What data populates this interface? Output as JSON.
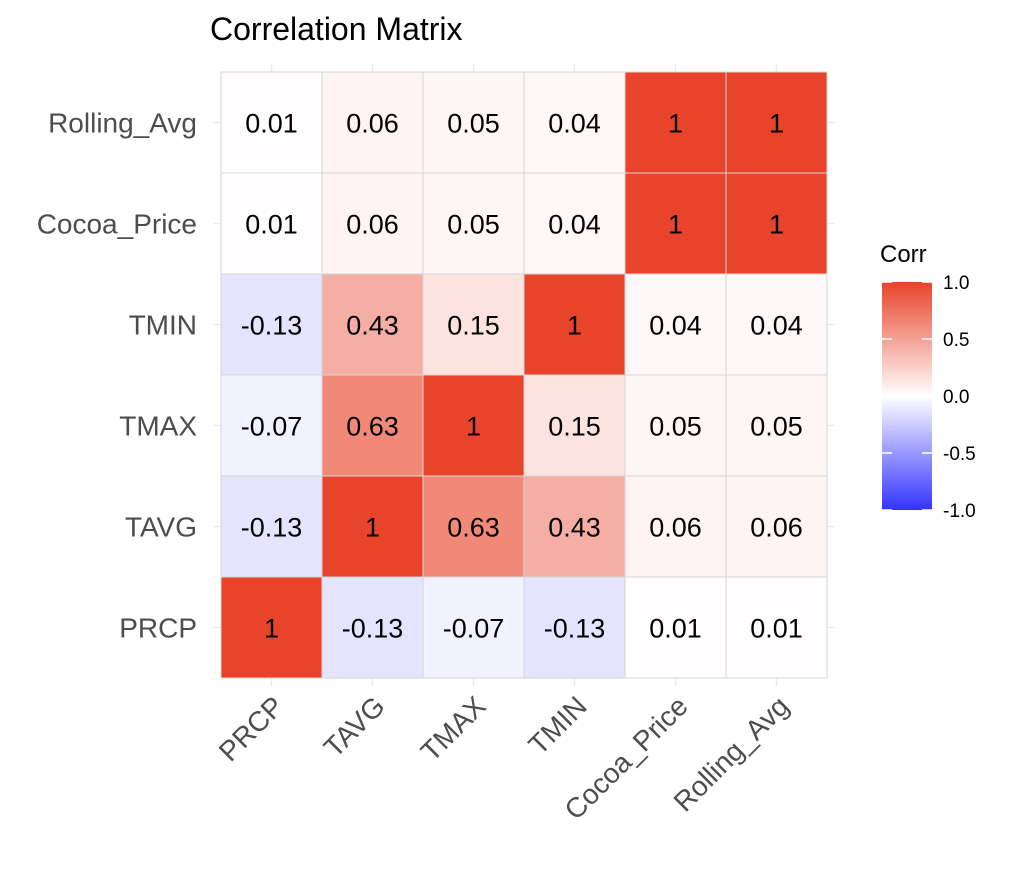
{
  "chart_data": {
    "type": "heatmap",
    "title": "Correlation Matrix",
    "xlabel": "",
    "ylabel": "",
    "x_categories": [
      "PRCP",
      "TAVG",
      "TMAX",
      "TMIN",
      "Cocoa_Price",
      "Rolling_Avg"
    ],
    "y_categories": [
      "PRCP",
      "TAVG",
      "TMAX",
      "TMIN",
      "Cocoa_Price",
      "Rolling_Avg"
    ],
    "y_order": "bottom-to-top",
    "values": [
      [
        1,
        -0.13,
        -0.07,
        -0.13,
        0.01,
        0.01
      ],
      [
        -0.13,
        1,
        0.63,
        0.43,
        0.06,
        0.06
      ],
      [
        -0.07,
        0.63,
        1,
        0.15,
        0.05,
        0.05
      ],
      [
        -0.13,
        0.43,
        0.15,
        1,
        0.04,
        0.04
      ],
      [
        0.01,
        0.06,
        0.05,
        0.04,
        1,
        1
      ],
      [
        0.01,
        0.06,
        0.05,
        0.04,
        1,
        1
      ]
    ],
    "labels": [
      [
        "1",
        "-0.13",
        "-0.07",
        "-0.13",
        "0.01",
        "0.01"
      ],
      [
        "-0.13",
        "1",
        "0.63",
        "0.43",
        "0.06",
        "0.06"
      ],
      [
        "-0.07",
        "0.63",
        "1",
        "0.15",
        "0.05",
        "0.05"
      ],
      [
        "-0.13",
        "0.43",
        "0.15",
        "1",
        "0.04",
        "0.04"
      ],
      [
        "0.01",
        "0.06",
        "0.05",
        "0.04",
        "1",
        "1"
      ],
      [
        "0.01",
        "0.06",
        "0.05",
        "0.04",
        "1",
        "1"
      ]
    ],
    "x_tick_rotation_deg": 45,
    "color_scale": {
      "low": "#3333ff",
      "mid": "#ffffff",
      "high": "#e8432b",
      "limits": [
        -1,
        1
      ]
    },
    "legend": {
      "title": "Corr",
      "placement": "right",
      "ticks": [
        1.0,
        0.5,
        0.0,
        -0.5,
        -1.0
      ],
      "tick_labels": [
        "1.0",
        "0.5",
        "0.0",
        "-0.5",
        "-1.0"
      ]
    },
    "grid": true
  }
}
